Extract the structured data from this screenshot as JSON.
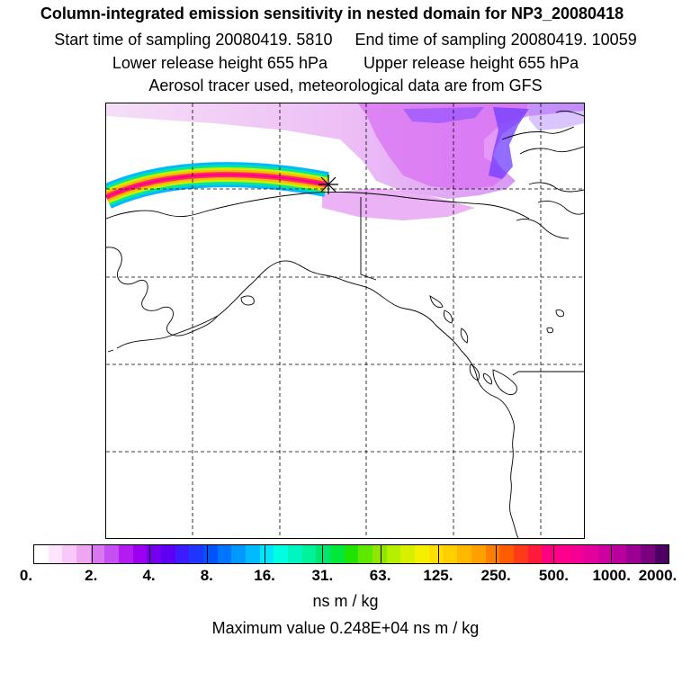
{
  "header": {
    "title": "Column-integrated emission sensitivity in nested domain for NP3_20080418",
    "start_time": "Start time of sampling 20080419.  5810",
    "end_time": "End time of sampling 20080419. 10059",
    "lower_release": "Lower release height  655 hPa",
    "upper_release": "Upper release height  655 hPa",
    "tracer_info": "Aerosol tracer used, meteorological data are from GFS"
  },
  "legend": {
    "tick_labels": [
      "0.",
      "2.",
      "4.",
      "8.",
      "16.",
      "31.",
      "63.",
      "125.",
      "250.",
      "500.",
      "1000.",
      "2000."
    ],
    "colors": [
      "#ffffff",
      "#fde6fd",
      "#f8c8f8",
      "#efa6f1",
      "#d877f0",
      "#c64ff3",
      "#b21cf0",
      "#9a00ef",
      "#7400ef",
      "#5d00f4",
      "#3c1bff",
      "#1f36ff",
      "#0054ff",
      "#0076ff",
      "#0099ff",
      "#00baff",
      "#00e6ff",
      "#00ffe0",
      "#00f5c0",
      "#00f29a",
      "#00e56e",
      "#00e83a",
      "#20e400",
      "#5ee800",
      "#91e600",
      "#b5f000",
      "#d8f000",
      "#f5f000",
      "#ffdf00",
      "#ffcf00",
      "#ffb800",
      "#ffa000",
      "#ff7d00",
      "#ff5c00",
      "#ff3a1a",
      "#ff1a3a",
      "#ff0080",
      "#ff008c",
      "#f40094",
      "#e4009a",
      "#cf00a0",
      "#b8009c",
      "#9a0094",
      "#7a0080",
      "#4e0060"
    ],
    "units": "ns m / kg",
    "max_value": "Maximum value  0.248E+04 ns m / kg"
  },
  "map": {
    "release_marker": "release-point",
    "grid": "dashed",
    "colors": {
      "coast": "#000000",
      "plume_light": "#f4c6f8",
      "plume_mid": "#d976f6",
      "plume_blue": "#5b2cff"
    }
  }
}
